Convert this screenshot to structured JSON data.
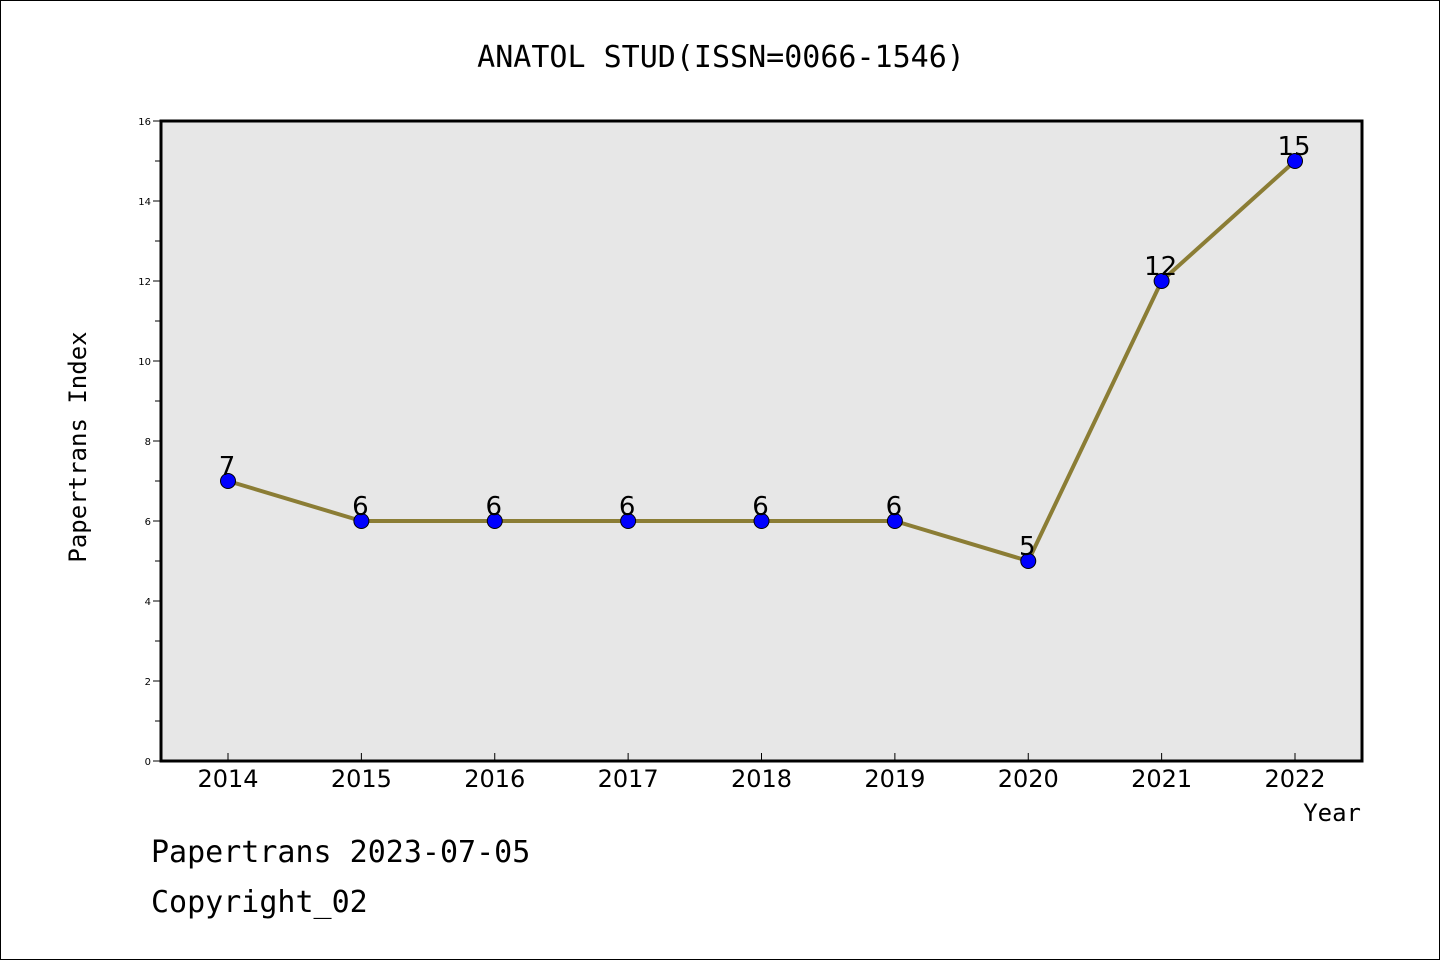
{
  "chart_data": {
    "type": "line",
    "title": "ANATOL STUD(ISSN=0066-1546)",
    "xlabel": "Year",
    "ylabel": "Papertrans Index",
    "x": [
      "2014",
      "2015",
      "2016",
      "2017",
      "2018",
      "2019",
      "2020",
      "2021",
      "2022"
    ],
    "series": [
      {
        "values": [
          7,
          6,
          6,
          6,
          6,
          6,
          5,
          12,
          15
        ]
      }
    ],
    "data_labels": [
      "7",
      "6",
      "6",
      "6",
      "6",
      "6",
      "5",
      "12",
      "15"
    ],
    "ylim": [
      0,
      16
    ],
    "yticks": [
      0,
      2,
      4,
      6,
      8,
      10,
      12,
      14,
      16
    ],
    "ytick_labels": [
      "0",
      "2",
      "4",
      "6",
      "8",
      "10",
      "12",
      "14",
      "16"
    ],
    "grid": false,
    "colors": {
      "line": "#8b7d35",
      "marker": "#0000ff",
      "marker_edge": "#000000",
      "plot_background": "#e7e7e7"
    }
  },
  "footer": {
    "line1": "Papertrans 2023-07-05",
    "line2": "Copyright_02"
  }
}
